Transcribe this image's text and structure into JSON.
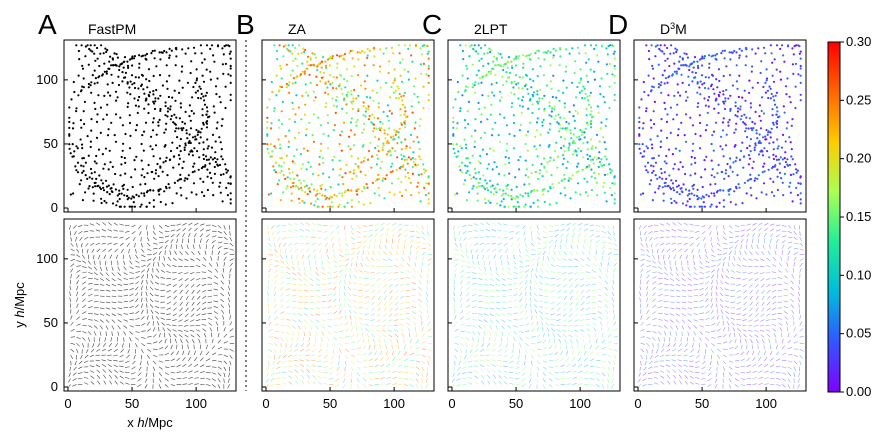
{
  "figure": {
    "panels": [
      {
        "letter": "A",
        "title": "FastPM",
        "colored": false
      },
      {
        "letter": "B",
        "title": "ZA",
        "colored": true,
        "scheme": "za"
      },
      {
        "letter": "C",
        "title": "2LPT",
        "colored": true,
        "scheme": "lpt"
      },
      {
        "letter": "D",
        "title_main": "D",
        "title_sup": "3",
        "title_tail": "M",
        "colored": true,
        "scheme": "d3m"
      }
    ],
    "rows": [
      "particle positions",
      "displacement field"
    ],
    "x_ticks": [
      "0",
      "50",
      "100"
    ],
    "y_ticks": [
      "0",
      "50",
      "100"
    ],
    "x_range": [
      0,
      128
    ],
    "y_range": [
      0,
      128
    ],
    "x_label_prefix": "x ",
    "x_label_italic": "h",
    "x_label_suffix": "/Mpc",
    "y_label_prefix": "y ",
    "y_label_italic": "h",
    "y_label_suffix": "/Mpc"
  },
  "chart_data": {
    "type": "scatter",
    "colorbar": {
      "min": 0.0,
      "max": 0.3,
      "ticks": [
        "0.00",
        "0.05",
        "0.10",
        "0.15",
        "0.20",
        "0.25",
        "0.30"
      ],
      "colormap": [
        "#8000ff",
        "#3355ff",
        "#00bbdd",
        "#22ee99",
        "#aaff55",
        "#ffcc00",
        "#ff6600",
        "#ff0000"
      ]
    },
    "colors": {
      "black": "#000000",
      "frame": "#000000"
    }
  }
}
